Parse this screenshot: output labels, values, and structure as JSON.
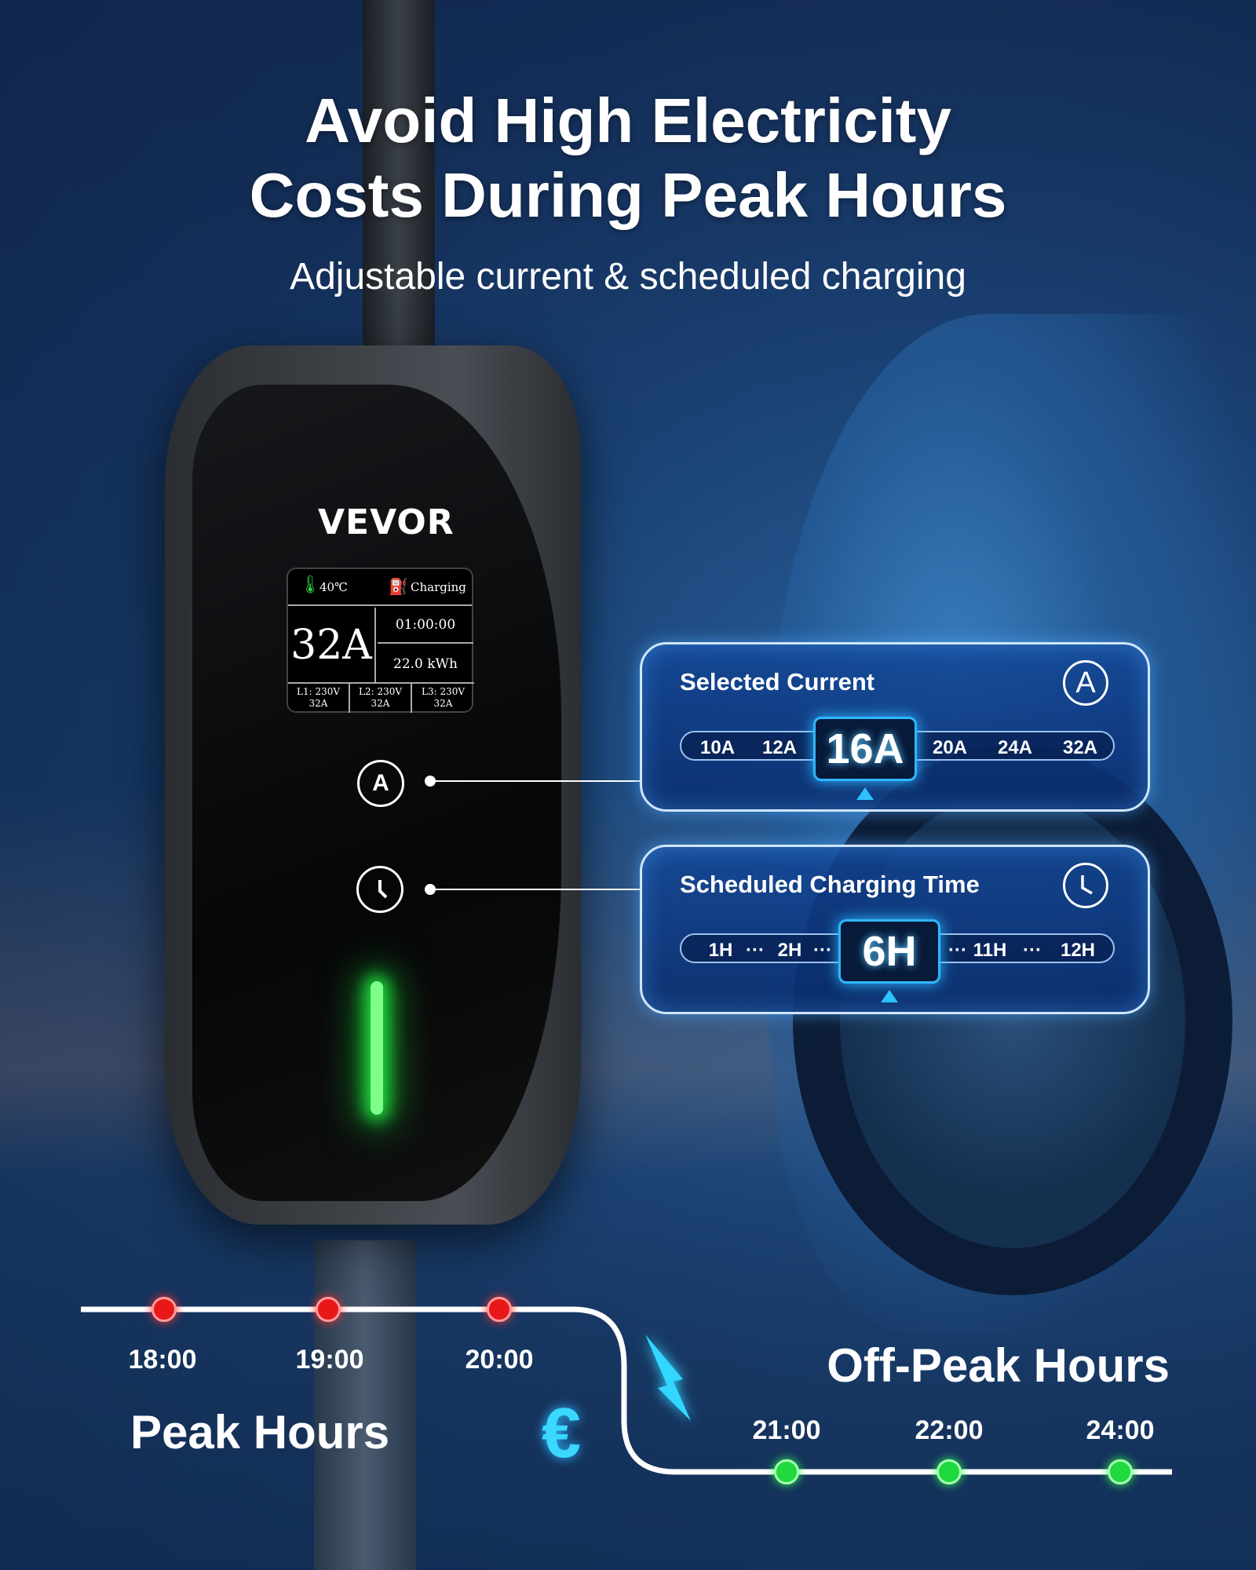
{
  "headline": {
    "line1": "Avoid High Electricity",
    "line2": "Costs During Peak Hours",
    "subtitle": "Adjustable current & scheduled charging"
  },
  "device": {
    "brand": "VEVOR",
    "screen": {
      "temperature": "40℃",
      "status": "Charging",
      "current": "32A",
      "time": "01:00:00",
      "energy": "22.0 kWh",
      "phases": [
        {
          "label": "L1: 230V",
          "current": "32A"
        },
        {
          "label": "L2: 230V",
          "current": "32A"
        },
        {
          "label": "L3: 230V",
          "current": "32A"
        }
      ]
    },
    "current_button": "A"
  },
  "current_panel": {
    "title": "Selected Current",
    "icon": "A",
    "options": [
      "10A",
      "12A",
      "20A",
      "24A",
      "32A"
    ],
    "selected": "16A"
  },
  "schedule_panel": {
    "title": "Scheduled Charging Time",
    "options": [
      "1H",
      "···",
      "2H",
      "···",
      "···",
      "11H",
      "···",
      "12H"
    ],
    "selected": "6H"
  },
  "timeline": {
    "peak_label": "Peak Hours",
    "peak_times": [
      "18:00",
      "19:00",
      "20:00"
    ],
    "offpeak_label": "Off-Peak Hours",
    "offpeak_times": [
      "21:00",
      "22:00",
      "24:00"
    ],
    "peak_color": "#e81818",
    "offpeak_color": "#20d840",
    "currency_icon": "€"
  },
  "colors": {
    "accent": "#2fb7ff"
  }
}
